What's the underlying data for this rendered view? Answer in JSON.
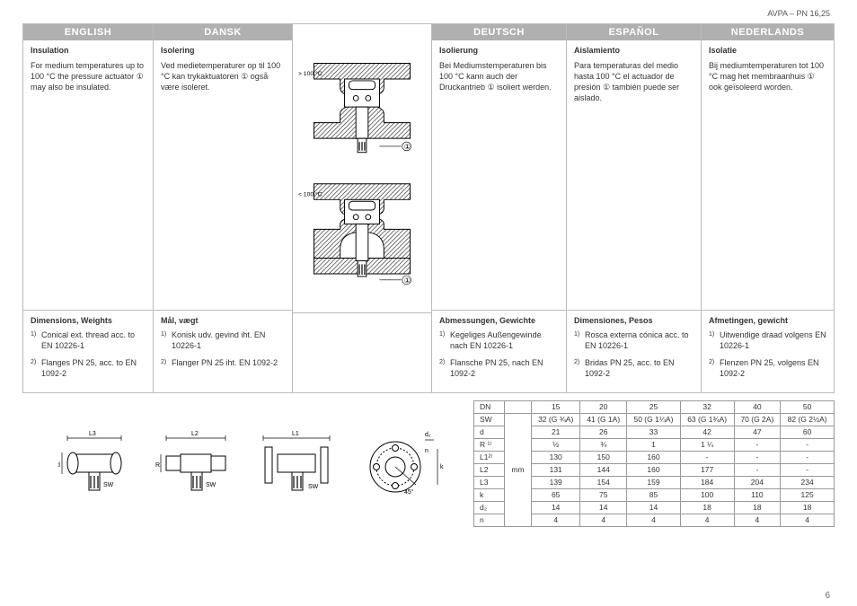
{
  "header": {
    "product": "AVPA – PN 16,25"
  },
  "langs": {
    "en": {
      "name": "ENGLISH",
      "insulation": {
        "title": "Insulation",
        "body": "For medium temperatures up to 100 °C the pressure actuator ① may also be insulated."
      },
      "dim": {
        "title": "Dimensions, Weights",
        "note1": "Conical ext. thread acc. to EN 10226-1",
        "note2": "Flanges PN 25, acc. to EN 1092-2"
      }
    },
    "dk": {
      "name": "DANSK",
      "insulation": {
        "title": "Isolering",
        "body": "Ved medietemperaturer op til 100 °C kan trykaktuatoren ① også være isoleret."
      },
      "dim": {
        "title": "Mål, vægt",
        "note1": "Konisk udv. gevind iht. EN 10226-1",
        "note2": "Flanger PN 25 iht. EN 1092-2"
      }
    },
    "de": {
      "name": "DEUTSCH",
      "insulation": {
        "title": "Isolierung",
        "body": "Bei Mediumstemperaturen bis 100 °C kann auch der Druckantrieb ① isoliert werden."
      },
      "dim": {
        "title": "Abmessungen, Gewichte",
        "note1": "Kegeliges Außengewinde nach EN 10226-1",
        "note2": "Flansche PN 25, nach EN 1092-2"
      }
    },
    "es": {
      "name": "ESPAÑOL",
      "insulation": {
        "title": "Aislamiento",
        "body": "Para temperaturas del medio hasta 100 °C el actuador de presión ① también puede ser aislado."
      },
      "dim": {
        "title": "Dimensiones, Pesos",
        "note1": "Rosca externa cónica acc. to EN 10226-1",
        "note2": "Bridas PN 25, acc. to EN 1092-2"
      }
    },
    "nl": {
      "name": "NEDERLANDS",
      "insulation": {
        "title": "Isolatie",
        "body": "Bij mediumtemperaturen tot 100  °C mag het membraanhuis ① ook geïsoleerd worden."
      },
      "dim": {
        "title": "Afmetingen, gewicht",
        "note1": "Uitwendige draad volgens EN 10226-1",
        "note2": "Flenzen PN 25, volgens EN 1092-2"
      }
    }
  },
  "diagram_labels": {
    "gt100": "> 100 °C",
    "lt100": "< 100 °C",
    "callout": "①"
  },
  "drawing_labels": {
    "L1": "L1",
    "L2": "L2",
    "L3": "L3",
    "d": "d",
    "R": "R",
    "SW": "SW",
    "d2": "d₂",
    "n": "n",
    "k": "k",
    "ang": "45°"
  },
  "table": {
    "unit": "mm",
    "rows": [
      {
        "label": "DN",
        "vals": [
          "15",
          "20",
          "25",
          "32",
          "40",
          "50"
        ]
      },
      {
        "label": "SW",
        "vals": [
          "32 (G ¾A)",
          "41 (G 1A)",
          "50 (G 1¼A)",
          "63 (G 1¾A)",
          "70 (G 2A)",
          "82 (G 2½A)"
        ]
      },
      {
        "label": "d",
        "vals": [
          "21",
          "26",
          "33",
          "42",
          "47",
          "60"
        ]
      },
      {
        "label": "R ¹⁾",
        "vals": [
          "½",
          "¾",
          "1",
          "1 ¼",
          "-",
          "-"
        ]
      },
      {
        "label": "L1²⁾",
        "vals": [
          "130",
          "150",
          "160",
          "-",
          "-",
          "-"
        ]
      },
      {
        "label": "L2",
        "vals": [
          "131",
          "144",
          "160",
          "177",
          "-",
          "-"
        ]
      },
      {
        "label": "L3",
        "vals": [
          "139",
          "154",
          "159",
          "184",
          "204",
          "234"
        ]
      },
      {
        "label": "k",
        "vals": [
          "65",
          "75",
          "85",
          "100",
          "110",
          "125"
        ]
      },
      {
        "label": "d₂",
        "vals": [
          "14",
          "14",
          "14",
          "18",
          "18",
          "18"
        ]
      },
      {
        "label": "n",
        "vals": [
          "4",
          "4",
          "4",
          "4",
          "4",
          "4"
        ]
      }
    ]
  },
  "page_num": "6"
}
